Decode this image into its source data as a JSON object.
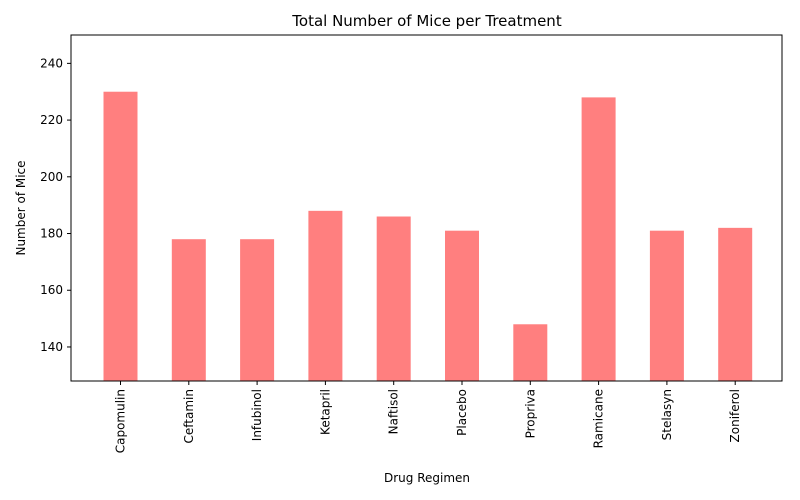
{
  "chart_data": {
    "type": "bar",
    "title": "Total Number of Mice per Treatment",
    "xlabel": "Drug Regimen",
    "ylabel": "Number of Mice",
    "categories": [
      "Capomulin",
      "Ceftamin",
      "Infubinol",
      "Ketapril",
      "Naftisol",
      "Placebo",
      "Propriva",
      "Ramicane",
      "Stelasyn",
      "Zoniferol"
    ],
    "values": [
      230,
      178,
      178,
      188,
      186,
      181,
      148,
      228,
      181,
      182
    ],
    "ylim": [
      128,
      250
    ],
    "yticks": [
      140,
      160,
      180,
      200,
      220,
      240
    ],
    "bar_color": "#ff7f7f",
    "grid": false,
    "legend": "none"
  }
}
